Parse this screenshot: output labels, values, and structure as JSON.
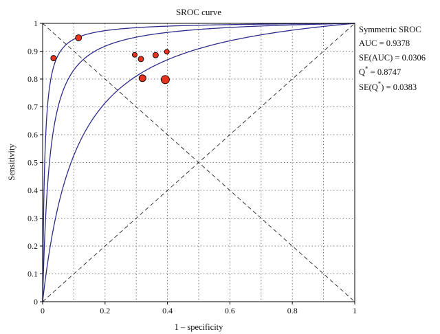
{
  "chart_data": {
    "type": "scatter",
    "title": "SROC curve",
    "xlabel": "1 – specificity",
    "ylabel": "Sensitivity",
    "xlim": [
      0,
      1
    ],
    "ylim": [
      0,
      1
    ],
    "x_ticks": [
      "0",
      "0.2",
      "0.4",
      "0.6",
      "0.8",
      "1"
    ],
    "y_ticks": [
      "0",
      "0.1",
      "0.2",
      "0.3",
      "0.4",
      "0.5",
      "0.6",
      "0.7",
      "0.8",
      "0.9",
      "1"
    ],
    "grid": true,
    "points": [
      {
        "x": 0.035,
        "y": 0.875,
        "size": 4
      },
      {
        "x": 0.115,
        "y": 0.948,
        "size": 4.5
      },
      {
        "x": 0.295,
        "y": 0.887,
        "size": 3.5
      },
      {
        "x": 0.315,
        "y": 0.872,
        "size": 4
      },
      {
        "x": 0.32,
        "y": 0.803,
        "size": 5
      },
      {
        "x": 0.362,
        "y": 0.886,
        "size": 4
      },
      {
        "x": 0.398,
        "y": 0.898,
        "size": 3.5
      },
      {
        "x": 0.393,
        "y": 0.798,
        "size": 6
      }
    ],
    "curves": [
      {
        "a": 5.0,
        "color": "#2b2b8c"
      },
      {
        "a": 3.8,
        "color": "#2b2b8c"
      },
      {
        "a": 2.3,
        "color": "#2b2b8c"
      }
    ],
    "reference_lines": [
      "diagonal",
      "anti-diagonal"
    ],
    "point_color": "#e8341f",
    "legend_position": "right",
    "legend": {
      "title": "Symmetric SROC",
      "auc": "AUC = 0.9378",
      "se_auc": "SE(AUC) = 0.0306",
      "q_label": "Q",
      "q_value": " = 0.8747",
      "seq_label_a": "SE(Q",
      "seq_label_b": ") = 0.0383",
      "star": "*"
    }
  }
}
